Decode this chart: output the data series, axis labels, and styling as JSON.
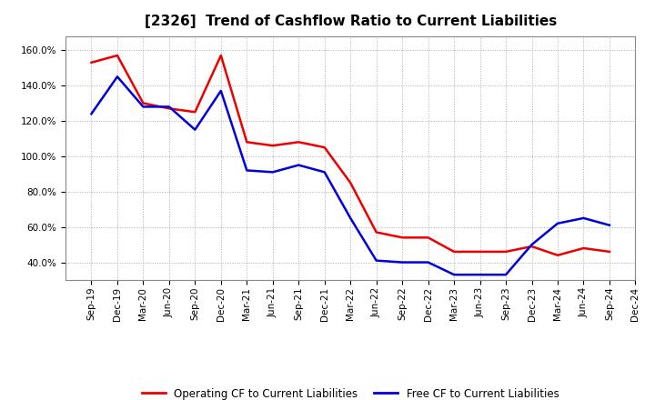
{
  "title": "[2326]  Trend of Cashflow Ratio to Current Liabilities",
  "x_labels": [
    "Sep-19",
    "Dec-19",
    "Mar-20",
    "Jun-20",
    "Sep-20",
    "Dec-20",
    "Mar-21",
    "Jun-21",
    "Sep-21",
    "Dec-21",
    "Mar-22",
    "Jun-22",
    "Sep-22",
    "Dec-22",
    "Mar-23",
    "Jun-23",
    "Sep-23",
    "Dec-23",
    "Mar-24",
    "Jun-24",
    "Sep-24",
    "Dec-24"
  ],
  "operating_cf": [
    153.0,
    157.0,
    130.0,
    127.0,
    125.0,
    157.0,
    108.0,
    106.0,
    108.0,
    105.0,
    85.0,
    57.0,
    54.0,
    54.0,
    46.0,
    46.0,
    46.0,
    49.0,
    44.0,
    48.0,
    46.0,
    null
  ],
  "free_cf": [
    124.0,
    145.0,
    128.0,
    128.0,
    115.0,
    137.0,
    92.0,
    91.0,
    95.0,
    91.0,
    65.0,
    41.0,
    40.0,
    40.0,
    33.0,
    33.0,
    33.0,
    50.0,
    62.0,
    65.0,
    61.0,
    null
  ],
  "ylim": [
    30.0,
    168.0
  ],
  "yticks": [
    40.0,
    60.0,
    80.0,
    100.0,
    120.0,
    140.0,
    160.0
  ],
  "operating_color": "#ee0000",
  "free_color": "#0000dd",
  "background_color": "#ffffff",
  "grid_color": "#999999",
  "legend_operating": "Operating CF to Current Liabilities",
  "legend_free": "Free CF to Current Liabilities",
  "title_fontsize": 11,
  "tick_fontsize": 7.5,
  "legend_fontsize": 8.5
}
